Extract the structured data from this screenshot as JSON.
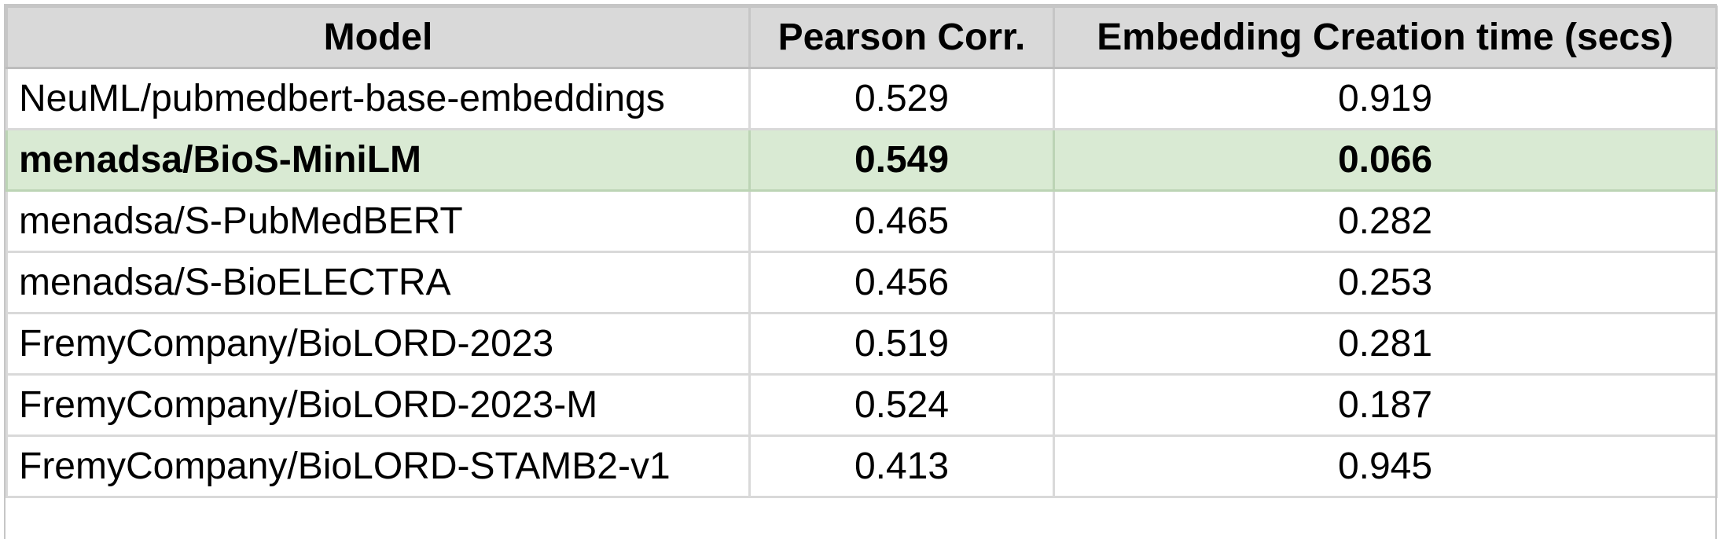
{
  "table": {
    "headers": {
      "model": "Model",
      "pearson": "Pearson Corr.",
      "time": "Embedding Creation time (secs)"
    },
    "rows": [
      {
        "model": "NeuML/pubmedbert-base-embeddings",
        "pearson": "0.529",
        "time": "0.919",
        "highlighted": false
      },
      {
        "model": "menadsa/BioS-MiniLM",
        "pearson": "0.549",
        "time": "0.066",
        "highlighted": true
      },
      {
        "model": "menadsa/S-PubMedBERT",
        "pearson": "0.465",
        "time": "0.282",
        "highlighted": false
      },
      {
        "model": "menadsa/S-BioELECTRA",
        "pearson": "0.456",
        "time": "0.253",
        "highlighted": false
      },
      {
        "model": "FremyCompany/BioLORD-2023",
        "pearson": "0.519",
        "time": "0.281",
        "highlighted": false
      },
      {
        "model": "FremyCompany/BioLORD-2023-M",
        "pearson": "0.524",
        "time": "0.187",
        "highlighted": false
      },
      {
        "model": "FremyCompany/BioLORD-STAMB2-v1",
        "pearson": "0.413",
        "time": "0.945",
        "highlighted": false
      }
    ]
  },
  "colors": {
    "header_bg": "#d9d9d9",
    "highlight_bg": "#d9ead3",
    "grid": "#d9d9d9"
  }
}
